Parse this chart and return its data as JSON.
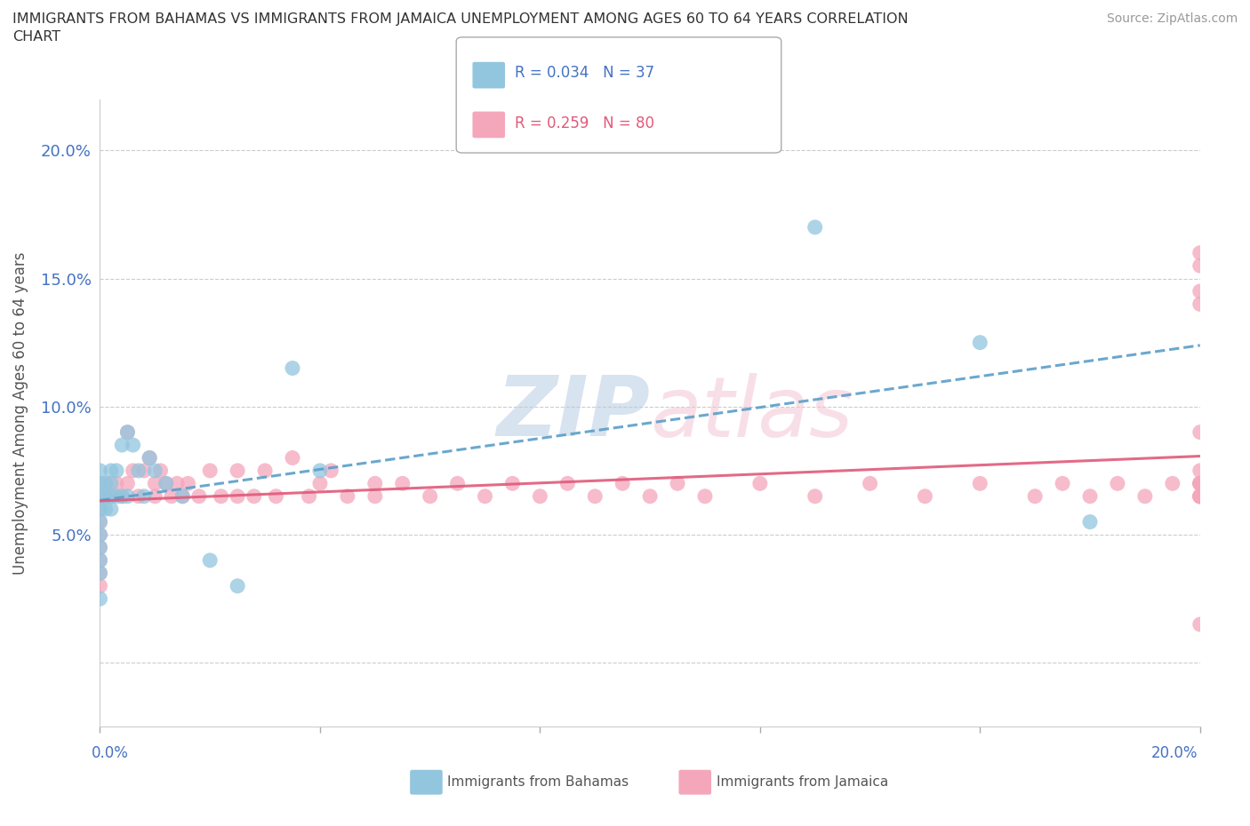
{
  "title_line1": "IMMIGRANTS FROM BAHAMAS VS IMMIGRANTS FROM JAMAICA UNEMPLOYMENT AMONG AGES 60 TO 64 YEARS CORRELATION",
  "title_line2": "CHART",
  "source_text": "Source: ZipAtlas.com",
  "ylabel": "Unemployment Among Ages 60 to 64 years",
  "r_bahamas": 0.034,
  "n_bahamas": 37,
  "r_jamaica": 0.259,
  "n_jamaica": 80,
  "color_bahamas": "#92c5de",
  "color_jamaica": "#f4a6bb",
  "trendline_bahamas_color": "#5b9ec9",
  "trendline_jamaica_color": "#e05a7a",
  "watermark_zip": "ZIP",
  "watermark_atlas": "atlas",
  "xmin": 0.0,
  "xmax": 0.2,
  "ymin": -0.025,
  "ymax": 0.22,
  "ytick_vals": [
    0.0,
    0.05,
    0.1,
    0.15,
    0.2
  ],
  "ytick_labels": [
    "",
    "5.0%",
    "10.0%",
    "15.0%",
    "20.0%"
  ],
  "bahamas_x": [
    0.0,
    0.0,
    0.0,
    0.0,
    0.0,
    0.0,
    0.0,
    0.0,
    0.0,
    0.0,
    0.001,
    0.001,
    0.001,
    0.002,
    0.002,
    0.002,
    0.002,
    0.003,
    0.003,
    0.004,
    0.004,
    0.005,
    0.005,
    0.006,
    0.007,
    0.008,
    0.009,
    0.01,
    0.012,
    0.015,
    0.02,
    0.025,
    0.035,
    0.04,
    0.13,
    0.16,
    0.18
  ],
  "bahamas_y": [
    0.065,
    0.07,
    0.075,
    0.06,
    0.055,
    0.05,
    0.045,
    0.04,
    0.035,
    0.025,
    0.07,
    0.065,
    0.06,
    0.075,
    0.07,
    0.065,
    0.06,
    0.075,
    0.065,
    0.085,
    0.065,
    0.09,
    0.065,
    0.085,
    0.075,
    0.065,
    0.08,
    0.075,
    0.07,
    0.065,
    0.04,
    0.03,
    0.115,
    0.075,
    0.17,
    0.125,
    0.055
  ],
  "jamaica_x": [
    0.0,
    0.0,
    0.0,
    0.0,
    0.0,
    0.0,
    0.0,
    0.0,
    0.001,
    0.002,
    0.003,
    0.004,
    0.005,
    0.005,
    0.006,
    0.007,
    0.008,
    0.009,
    0.01,
    0.01,
    0.011,
    0.012,
    0.013,
    0.014,
    0.015,
    0.016,
    0.018,
    0.02,
    0.022,
    0.025,
    0.025,
    0.028,
    0.03,
    0.032,
    0.035,
    0.038,
    0.04,
    0.042,
    0.045,
    0.05,
    0.05,
    0.055,
    0.06,
    0.065,
    0.07,
    0.075,
    0.08,
    0.085,
    0.09,
    0.095,
    0.1,
    0.105,
    0.11,
    0.12,
    0.13,
    0.14,
    0.15,
    0.16,
    0.17,
    0.175,
    0.18,
    0.185,
    0.19,
    0.195,
    0.2,
    0.2,
    0.2,
    0.2,
    0.2,
    0.2,
    0.2,
    0.2,
    0.2,
    0.2,
    0.2,
    0.2,
    0.2,
    0.2,
    0.2,
    0.2
  ],
  "jamaica_y": [
    0.065,
    0.06,
    0.055,
    0.05,
    0.045,
    0.04,
    0.035,
    0.03,
    0.07,
    0.065,
    0.07,
    0.065,
    0.09,
    0.07,
    0.075,
    0.065,
    0.075,
    0.08,
    0.065,
    0.07,
    0.075,
    0.07,
    0.065,
    0.07,
    0.065,
    0.07,
    0.065,
    0.075,
    0.065,
    0.075,
    0.065,
    0.065,
    0.075,
    0.065,
    0.08,
    0.065,
    0.07,
    0.075,
    0.065,
    0.065,
    0.07,
    0.07,
    0.065,
    0.07,
    0.065,
    0.07,
    0.065,
    0.07,
    0.065,
    0.07,
    0.065,
    0.07,
    0.065,
    0.07,
    0.065,
    0.07,
    0.065,
    0.07,
    0.065,
    0.07,
    0.065,
    0.07,
    0.065,
    0.07,
    0.065,
    0.07,
    0.065,
    0.07,
    0.065,
    0.07,
    0.065,
    0.145,
    0.16,
    0.155,
    0.14,
    0.09,
    0.07,
    0.075,
    0.065,
    0.015
  ],
  "legend_r_color_bah": "#4472c4",
  "legend_n_color_bah": "#4472c4",
  "legend_r_color_jam": "#e05a7a",
  "legend_n_color_jam": "#e05a7a",
  "ytick_color": "#4472c4",
  "xtick_color": "#4472c4"
}
